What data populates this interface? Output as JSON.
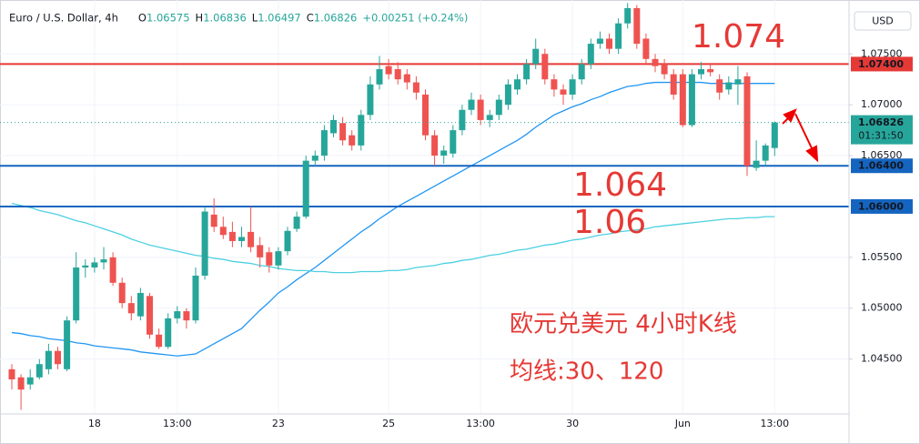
{
  "chart_data": {
    "type": "candlestick",
    "title": "Euro / U.S. Dollar, 4h",
    "header": [
      {
        "key": "O",
        "value": "1.06575"
      },
      {
        "key": "H",
        "value": "1.06836"
      },
      {
        "key": "L",
        "value": "1.06497"
      },
      {
        "key": "C",
        "value": "1.06826"
      }
    ],
    "change": "+0.00251 (+0.24%)",
    "currency": "USD",
    "up_color": "#26a69a",
    "down_color": "#ef5350",
    "categories": [
      null,
      null,
      null,
      null,
      null,
      null,
      null,
      null,
      null,
      "18",
      null,
      null,
      null,
      null,
      null,
      null,
      null,
      null,
      "13:00",
      null,
      null,
      null,
      null,
      null,
      null,
      null,
      null,
      null,
      null,
      "23",
      null,
      null,
      null,
      null,
      null,
      null,
      null,
      null,
      null,
      null,
      null,
      "25",
      null,
      null,
      null,
      null,
      null,
      null,
      null,
      null,
      null,
      "13:00",
      null,
      null,
      null,
      null,
      null,
      null,
      null,
      null,
      null,
      "30",
      null,
      null,
      null,
      null,
      null,
      null,
      null,
      null,
      null,
      null,
      null,
      "Jun",
      null,
      null,
      null,
      null,
      null,
      null,
      null,
      null,
      null,
      "13:00"
    ],
    "open": [
      1.044,
      1.0432,
      1.0425,
      1.0432,
      1.044,
      1.0458,
      1.044,
      1.0488,
      1.054,
      1.054,
      1.0545,
      1.055,
      1.0525,
      1.0505,
      1.0492,
      1.0512,
      1.0474,
      1.0462,
      1.049,
      1.0497,
      1.0488,
      1.0532,
      1.0592,
      1.058,
      1.0575,
      1.0566,
      1.0575,
      1.0562,
      1.0555,
      1.0542,
      1.0556,
      1.0578,
      1.059,
      1.0645,
      1.065,
      1.0672,
      1.0682,
      1.067,
      1.066,
      1.069,
      1.072,
      1.0738,
      1.0735,
      1.073,
      1.0722,
      1.071,
      1.067,
      1.065,
      1.0652,
      1.0675,
      1.0695,
      1.0705,
      1.0685,
      1.069,
      1.07,
      1.0715,
      1.0725,
      1.074,
      1.075,
      1.0725,
      1.0715,
      1.071,
      1.0725,
      1.074,
      1.076,
      1.0765,
      1.0755,
      1.078,
      1.0795,
      1.0765,
      1.0745,
      1.074,
      1.073,
      1.073,
      1.068,
      1.073,
      1.0735,
      1.0725,
      1.0715,
      1.072,
      1.0728,
      1.0638,
      1.0645,
      1.06575
    ],
    "high": [
      1.0445,
      1.0435,
      1.044,
      1.045,
      1.0465,
      1.0462,
      1.0492,
      1.0555,
      1.0548,
      1.055,
      1.056,
      1.0555,
      1.053,
      1.0512,
      1.052,
      1.0515,
      1.048,
      1.0495,
      1.0502,
      1.05,
      1.054,
      1.06,
      1.0608,
      1.059,
      1.0585,
      1.058,
      1.06,
      1.057,
      1.056,
      1.056,
      1.058,
      1.0595,
      1.065,
      1.0655,
      1.068,
      1.069,
      1.0688,
      1.0675,
      1.0695,
      1.0728,
      1.0748,
      1.0745,
      1.0742,
      1.0735,
      1.0728,
      1.0715,
      1.0675,
      1.066,
      1.068,
      1.07,
      1.0712,
      1.071,
      1.0695,
      1.071,
      1.0725,
      1.073,
      1.0745,
      1.0765,
      1.0755,
      1.073,
      1.072,
      1.073,
      1.0745,
      1.0765,
      1.0772,
      1.077,
      1.0785,
      1.08,
      1.0798,
      1.077,
      1.075,
      1.0745,
      1.0735,
      1.0735,
      1.0735,
      1.0742,
      1.074,
      1.073,
      1.0728,
      1.0738,
      1.0732,
      1.0665,
      1.0662,
      1.06836
    ],
    "low": [
      1.042,
      1.04,
      1.042,
      1.043,
      1.0435,
      1.044,
      1.0438,
      1.0485,
      1.053,
      1.0535,
      1.0538,
      1.0522,
      1.05,
      1.0488,
      1.0488,
      1.047,
      1.046,
      1.046,
      1.0485,
      1.048,
      1.0485,
      1.0528,
      1.0575,
      1.0568,
      1.056,
      1.056,
      1.0555,
      1.054,
      1.0535,
      1.0538,
      1.0552,
      1.0575,
      1.0588,
      1.064,
      1.0645,
      1.0668,
      1.066,
      1.0655,
      1.0655,
      1.0685,
      1.0715,
      1.0725,
      1.072,
      1.0715,
      1.0705,
      1.0665,
      1.064,
      1.0642,
      1.0648,
      1.067,
      1.069,
      1.068,
      1.0678,
      1.0685,
      1.0695,
      1.071,
      1.072,
      1.0735,
      1.072,
      1.0708,
      1.07,
      1.0705,
      1.072,
      1.0735,
      1.0755,
      1.075,
      1.075,
      1.0775,
      1.0755,
      1.074,
      1.0732,
      1.0725,
      1.0705,
      1.0678,
      1.0678,
      1.0725,
      1.0728,
      1.0705,
      1.071,
      1.07,
      1.063,
      1.0635,
      1.064,
      1.06497
    ],
    "close": [
      1.043,
      1.042,
      1.0432,
      1.0445,
      1.0458,
      1.0445,
      1.0488,
      1.054,
      1.0542,
      1.0545,
      1.0548,
      1.0525,
      1.0505,
      1.0495,
      1.0515,
      1.0474,
      1.0462,
      1.049,
      1.0497,
      1.0488,
      1.0532,
      1.0595,
      1.058,
      1.0572,
      1.0566,
      1.057,
      1.056,
      1.055,
      1.0542,
      1.0556,
      1.0576,
      1.059,
      1.0645,
      1.065,
      1.0675,
      1.0685,
      1.0665,
      1.066,
      1.069,
      1.072,
      1.0735,
      1.073,
      1.0725,
      1.0722,
      1.0712,
      1.067,
      1.065,
      1.0655,
      1.0675,
      1.0695,
      1.0705,
      1.0685,
      1.069,
      1.0705,
      1.072,
      1.0725,
      1.074,
      1.0755,
      1.0725,
      1.0715,
      1.071,
      1.0725,
      1.074,
      1.076,
      1.0765,
      1.0755,
      1.078,
      1.0795,
      1.076,
      1.0745,
      1.0738,
      1.073,
      1.071,
      1.068,
      1.073,
      1.0735,
      1.0732,
      1.0712,
      1.0722,
      1.0725,
      1.064,
      1.0645,
      1.066,
      1.06826
    ],
    "lines": [
      {
        "color": "#2196f3",
        "values": [
          1.0476,
          1.0475,
          1.0473,
          1.0472,
          1.047,
          1.0469,
          1.0468,
          1.0466,
          1.0465,
          1.0463,
          1.0462,
          1.0461,
          1.046,
          1.0459,
          1.0457,
          1.0456,
          1.0455,
          1.0454,
          1.0453,
          1.0454,
          1.0455,
          1.046,
          1.0465,
          1.047,
          1.0475,
          1.048,
          1.0489,
          1.0498,
          1.0506,
          1.0515,
          1.0521,
          1.0528,
          1.0534,
          1.054,
          1.0547,
          1.0554,
          1.0561,
          1.0568,
          1.0575,
          1.0581,
          1.0588,
          1.0594,
          1.06,
          1.0605,
          1.061,
          1.0615,
          1.062,
          1.0625,
          1.063,
          1.0635,
          1.064,
          1.0645,
          1.065,
          1.0655,
          1.066,
          1.0665,
          1.0671,
          1.0678,
          1.0684,
          1.069,
          1.0694,
          1.0698,
          1.0701,
          1.0705,
          1.0708,
          1.0712,
          1.0715,
          1.0718,
          1.0719,
          1.0721,
          1.0722,
          1.0722,
          1.0722,
          1.0722,
          1.0722,
          1.0722,
          1.0721,
          1.0721,
          1.0721,
          1.0721,
          1.0721,
          1.0721,
          1.0721,
          1.0721
        ]
      },
      {
        "color": "#4dd0e1",
        "values": [
          1.0603,
          1.0601,
          1.0599,
          1.0596,
          1.0594,
          1.0592,
          1.0589,
          1.0586,
          1.0584,
          1.0581,
          1.0578,
          1.0575,
          1.0572,
          1.0568,
          1.0565,
          1.0562,
          1.056,
          1.0558,
          1.0556,
          1.0554,
          1.0552,
          1.0551,
          1.0549,
          1.0548,
          1.0546,
          1.0545,
          1.0544,
          1.0542,
          1.0541,
          1.0539,
          1.0538,
          1.0537,
          1.0537,
          1.0536,
          1.0536,
          1.0535,
          1.0535,
          1.0535,
          1.0536,
          1.0536,
          1.0536,
          1.0537,
          1.0537,
          1.0538,
          1.054,
          1.0541,
          1.0542,
          1.0544,
          1.0545,
          1.0547,
          1.0548,
          1.055,
          1.0552,
          1.0553,
          1.0555,
          1.0557,
          1.0558,
          1.056,
          1.0562,
          1.0563,
          1.0565,
          1.0567,
          1.0568,
          1.057,
          1.0572,
          1.0573,
          1.0575,
          1.0576,
          1.0577,
          1.0578,
          1.058,
          1.0581,
          1.0582,
          1.0583,
          1.0584,
          1.0585,
          1.0586,
          1.0587,
          1.0588,
          1.0588,
          1.0589,
          1.0589,
          1.059,
          1.059
        ]
      }
    ],
    "levels": [
      {
        "value": 1.074,
        "label": "1.07400",
        "color": "#e53935"
      },
      {
        "value": 1.064,
        "label": "1.06400",
        "color": "#1565c0"
      },
      {
        "value": 1.06,
        "label": "1.06000",
        "color": "#1565c0"
      }
    ],
    "last": {
      "value": 1.06826,
      "label": "1.06826",
      "countdown": "01:31:50",
      "color": "#26a69a"
    },
    "ylim": [
      1.0396,
      1.0803
    ],
    "yticks": [
      {
        "value": 1.075,
        "label": "1.07500"
      },
      {
        "value": 1.07,
        "label": "1.07000"
      },
      {
        "value": 1.065,
        "label": "1.06500"
      },
      {
        "value": 1.055,
        "label": "1.05500"
      },
      {
        "value": 1.05,
        "label": "1.05000"
      },
      {
        "value": 1.045,
        "label": "1.04500"
      }
    ],
    "grid": true,
    "annotations": [
      "1.074",
      "1.064",
      "1.06",
      "欧元兑美元 4小时K线",
      "均线:30、120"
    ]
  }
}
